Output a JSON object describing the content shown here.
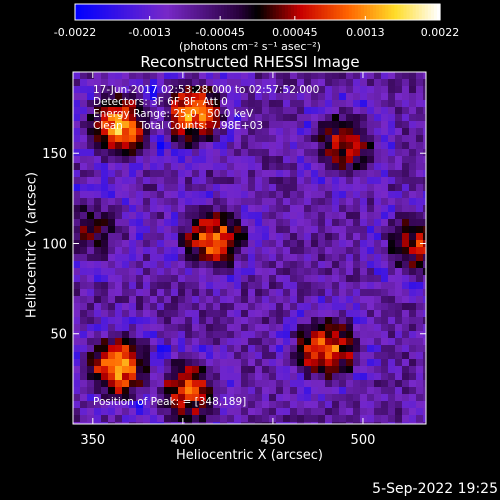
{
  "chart_data": {
    "type": "heatmap",
    "title": "Reconstructed RHESSI Image",
    "xlabel": "Heliocentric X (arcsec)",
    "ylabel": "Heliocentric Y (arcsec)",
    "xlim": [
      339,
      535
    ],
    "ylim": [
      0,
      195
    ],
    "xticks": [
      350,
      400,
      450,
      500
    ],
    "yticks": [
      50,
      100,
      150
    ],
    "colorbar": {
      "range": [
        -0.0022,
        0.0022
      ],
      "ticks": [
        "-0.0022",
        "-0.0013",
        "-0.00045",
        "0.00045",
        "0.0013",
        "0.0022"
      ],
      "units": "(photons cm⁻² s⁻¹ asec⁻²)"
    },
    "sources": [
      {
        "x": 365,
        "y": 165,
        "intensity": 0.0022
      },
      {
        "x": 405,
        "y": 172,
        "intensity": 0.002
      },
      {
        "x": 417,
        "y": 103,
        "intensity": 0.0018
      },
      {
        "x": 365,
        "y": 32,
        "intensity": 0.0022
      },
      {
        "x": 402,
        "y": 18,
        "intensity": 0.0018
      },
      {
        "x": 480,
        "y": 42,
        "intensity": 0.0019
      },
      {
        "x": 490,
        "y": 155,
        "intensity": 0.0013
      },
      {
        "x": 530,
        "y": 100,
        "intensity": 0.0013
      },
      {
        "x": 350,
        "y": 108,
        "intensity": 0.0008
      }
    ],
    "background_level": -0.00085
  },
  "annotations": {
    "time": "17-Jun-2017 02:53:28.000 to 02:57:52.000",
    "detectors": "Detectors: 3F 6F 8F, Att 0",
    "energy": "Energy Range: 25.0 - 50.0 keV",
    "method": "Clean     Total Counts: 7.98E+03",
    "peak": "Position of Peak: = [348,189]"
  },
  "footer_date": "5-Sep-2022 19:25",
  "colors": {
    "background": "#000000",
    "text": "#ffffff"
  }
}
